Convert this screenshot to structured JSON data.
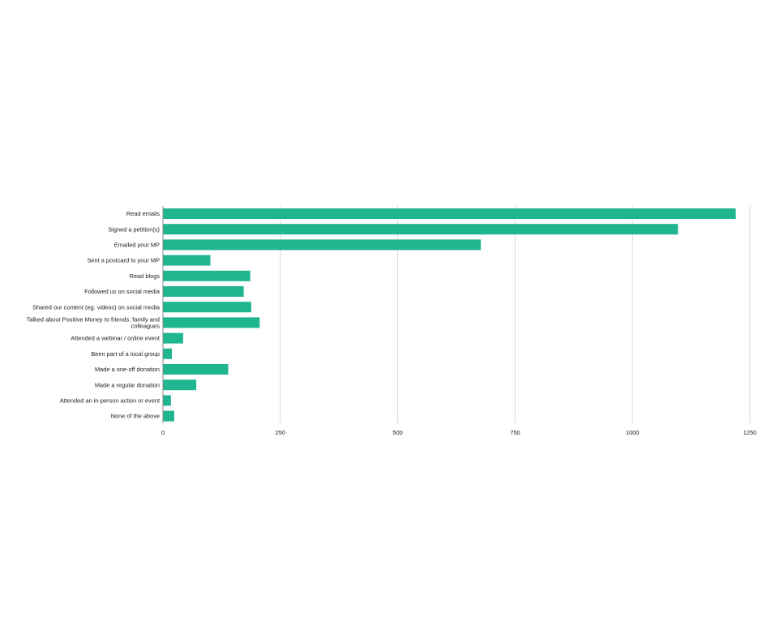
{
  "chart_data": {
    "type": "bar",
    "orientation": "horizontal",
    "categories": [
      "Read emails",
      "Signed a petition(s)",
      "Emailed your MP",
      "Sent a postcard to your MP",
      "Read blogs",
      "Followed us on social media",
      "Shared our content (eg. videos) on social media",
      "Talked about Positive Money to friends, family and colleagues",
      "Attended a webinar / online event",
      "Been part of a local group",
      "Made a one-off donation",
      "Made a regular donation",
      "Attended an in-person action or event",
      "None of the above"
    ],
    "category_label_lines": [
      [
        "Read emails"
      ],
      [
        "Signed a petition(s)"
      ],
      [
        "Emailed your MP"
      ],
      [
        "Sent a postcard to your MP"
      ],
      [
        "Read blogs"
      ],
      [
        "Followed us on social media"
      ],
      [
        "Shared our content (eg. videos) on social media"
      ],
      [
        "Talked about Positive Money to friends, family and",
        "colleagues"
      ],
      [
        "Attended a webinar / online event"
      ],
      [
        "Been part of a local group"
      ],
      [
        "Made a one-off donation"
      ],
      [
        "Made a regular donation"
      ],
      [
        "Attended an in-person action or event"
      ],
      [
        "None of the above"
      ]
    ],
    "values": [
      1220,
      1097,
      677,
      101,
      186,
      172,
      188,
      206,
      43,
      19,
      139,
      71,
      17,
      24
    ],
    "xlim": [
      0,
      1250
    ],
    "x_ticks": [
      "0",
      "250",
      "500",
      "750",
      "1000",
      "1250"
    ],
    "x_tick_values": [
      0,
      250,
      500,
      750,
      1000,
      1250
    ],
    "grid": true,
    "bar_color": "#1fb58f",
    "grid_color": "#d9d9d9",
    "axis_color": "#888888"
  }
}
